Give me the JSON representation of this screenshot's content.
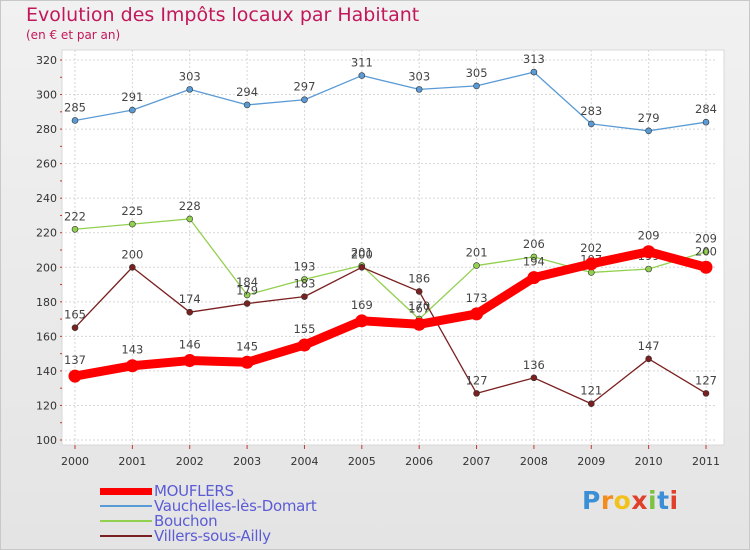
{
  "title": "Evolution des Impôts locaux par Habitant",
  "subtitle": "(en € et par an)",
  "logo": "Proxiti",
  "chart_data": {
    "type": "line",
    "x": [
      "2000",
      "2001",
      "2002",
      "2003",
      "2004",
      "2005",
      "2006",
      "2007",
      "2008",
      "2009",
      "2010",
      "2011"
    ],
    "ylim": [
      100,
      320
    ],
    "yticks": [
      100,
      120,
      140,
      160,
      180,
      200,
      220,
      240,
      260,
      280,
      300,
      320
    ],
    "grid": true,
    "legend_position": "bottom-left",
    "series": [
      {
        "name": "MOUFLERS",
        "color": "#ff0000",
        "values": [
          137,
          143,
          146,
          145,
          155,
          169,
          167,
          173,
          194,
          202,
          209,
          200
        ],
        "labels": [
          "137",
          "143",
          "146",
          "145",
          "155",
          "169",
          "167",
          "173",
          "194",
          "202",
          "209",
          "200"
        ]
      },
      {
        "name": "Vauchelles-lès-Domart",
        "color": "#5b9bd5",
        "values": [
          285,
          291,
          303,
          294,
          297,
          311,
          303,
          305,
          313,
          283,
          279,
          284
        ],
        "labels": [
          "285",
          "291",
          "303",
          "294",
          "297",
          "311",
          "303",
          "305",
          "313",
          "283",
          "279",
          "284"
        ]
      },
      {
        "name": "Bouchon",
        "color": "#92d050",
        "values": [
          222,
          225,
          228,
          184,
          193,
          201,
          170,
          201,
          206,
          197,
          199,
          209
        ],
        "labels": [
          "222",
          "225",
          "228",
          "184",
          "193",
          "201",
          "170",
          "201",
          "206",
          "197",
          "199",
          "209"
        ]
      },
      {
        "name": "Villers-sous-Ailly",
        "color": "#7b2020",
        "values": [
          165,
          200,
          174,
          179,
          183,
          200,
          186,
          127,
          136,
          121,
          147,
          127
        ],
        "labels": [
          "165",
          "200",
          "174",
          "179",
          "183",
          "200",
          "186",
          "127",
          "136",
          "121",
          "147",
          "127"
        ]
      }
    ]
  }
}
